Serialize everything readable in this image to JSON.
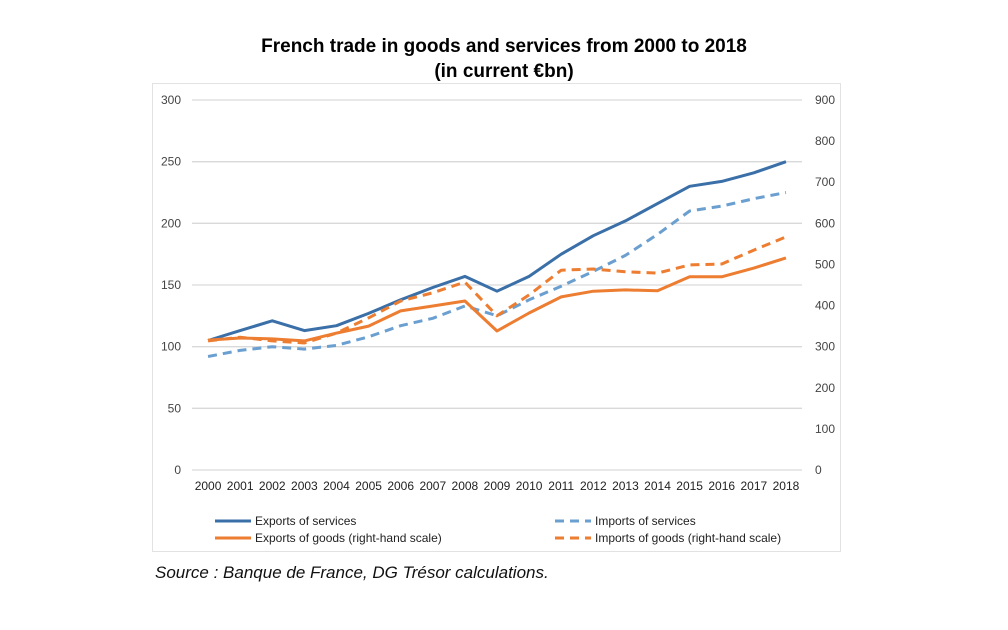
{
  "chart_data": {
    "type": "line",
    "title": "French trade in goods and services from 2000 to 2018",
    "subtitle": "(in current €bn)",
    "x": [
      "2000",
      "2001",
      "2002",
      "2003",
      "2004",
      "2005",
      "2006",
      "2007",
      "2008",
      "2009",
      "2010",
      "2011",
      "2012",
      "2013",
      "2014",
      "2015",
      "2016",
      "2017",
      "2018"
    ],
    "y_left": {
      "range": [
        0,
        300
      ],
      "ticks": [
        "0",
        "50",
        "100",
        "150",
        "200",
        "250",
        "300"
      ]
    },
    "y_right": {
      "range": [
        0,
        900
      ],
      "ticks": [
        "0",
        "100",
        "200",
        "300",
        "400",
        "500",
        "600",
        "700",
        "800",
        "900"
      ]
    },
    "grid": true,
    "legend_position": "bottom",
    "series": [
      {
        "name": "Exports of services",
        "axis": "left",
        "color": "#3a6fa8",
        "dash": false,
        "values": [
          105,
          113,
          121,
          113,
          117,
          127,
          138,
          148,
          157,
          145,
          157,
          175,
          190,
          202,
          216,
          230,
          234,
          241,
          250
        ]
      },
      {
        "name": "Imports of services",
        "axis": "left",
        "color": "#6a9fd0",
        "dash": true,
        "values": [
          92,
          97,
          100,
          98,
          101,
          108,
          117,
          123,
          133,
          125,
          138,
          149,
          161,
          174,
          191,
          210,
          214,
          220,
          225
        ]
      },
      {
        "name": "Exports of goods (right-hand scale)",
        "axis": "right",
        "color": "#ed7d31",
        "dash": false,
        "values": [
          316,
          321,
          319,
          314,
          333,
          350,
          387,
          399,
          411,
          338,
          382,
          421,
          435,
          438,
          436,
          470,
          470,
          491,
          516
        ]
      },
      {
        "name": "Imports of goods (right-hand scale)",
        "axis": "right",
        "color": "#ed7d31",
        "dash": true,
        "values": [
          314,
          323,
          314,
          309,
          333,
          370,
          411,
          431,
          457,
          375,
          426,
          486,
          489,
          482,
          479,
          499,
          501,
          535,
          567
        ]
      }
    ]
  },
  "source": "Source : Banque de France, DG Trésor calculations."
}
